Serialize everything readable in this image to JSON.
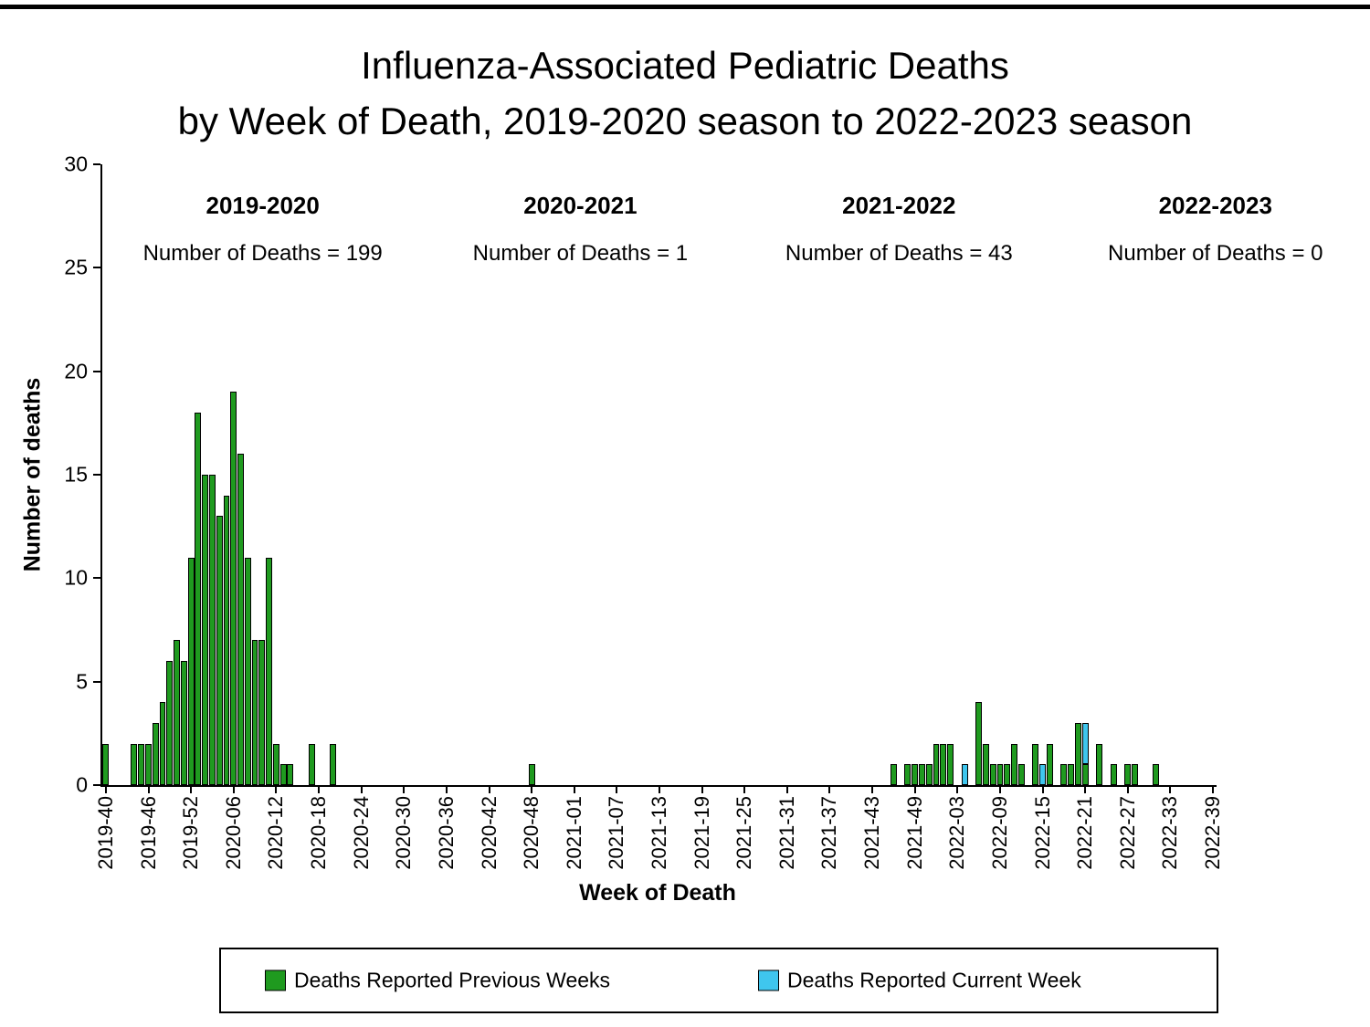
{
  "page": {
    "title_line1": "Influenza-Associated Pediatric Deaths",
    "title_line2": "by Week of Death, 2019-2020 season to 2022-2023 season"
  },
  "y_axis": {
    "label": "Number of deaths",
    "ticks": [
      0,
      5,
      10,
      15,
      20,
      25,
      30
    ],
    "max": 30
  },
  "x_axis": {
    "label": "Week of Death",
    "tick_labels": [
      "2019-40",
      "2019-46",
      "2019-52",
      "2020-06",
      "2020-12",
      "2020-18",
      "2020-24",
      "2020-30",
      "2020-36",
      "2020-42",
      "2020-48",
      "2021-01",
      "2021-07",
      "2021-13",
      "2021-19",
      "2021-25",
      "2021-31",
      "2021-37",
      "2021-43",
      "2021-49",
      "2022-03",
      "2022-09",
      "2022-15",
      "2022-21",
      "2022-27",
      "2022-33",
      "2022-39"
    ]
  },
  "seasons": [
    {
      "name": "2019-2020",
      "count_label": "Number of Deaths = 199"
    },
    {
      "name": "2020-2021",
      "count_label": "Number of Deaths = 1"
    },
    {
      "name": "2021-2022",
      "count_label": "Number of Deaths = 43"
    },
    {
      "name": "2022-2023",
      "count_label": "Number of Deaths = 0"
    }
  ],
  "legend": {
    "previous": {
      "label": "Deaths Reported Previous Weeks",
      "color": "#1f9a1f"
    },
    "current": {
      "label": "Deaths Reported Current Week",
      "color": "#3fc6ee"
    }
  },
  "chart_data": {
    "type": "bar",
    "stacked": true,
    "title": "Influenza-Associated Pediatric Deaths by Week of Death, 2019-2020 season to 2022-2023 season",
    "xlabel": "Week of Death",
    "ylabel": "Number of deaths",
    "ylim": [
      0,
      30
    ],
    "grid": false,
    "legend_position": "bottom",
    "week_spans": [
      {
        "year": "2019",
        "from": 40,
        "to": 52
      },
      {
        "year": "2020",
        "from": 1,
        "to": 53
      },
      {
        "year": "2021",
        "from": 1,
        "to": 52
      },
      {
        "year": "2022",
        "from": 1,
        "to": 39
      }
    ],
    "season_totals": {
      "2019-2020": 199,
      "2020-2021": 1,
      "2021-2022": 43,
      "2022-2023": 0
    },
    "series": [
      {
        "name": "Deaths Reported Previous Weeks",
        "color": "#1f9a1f"
      },
      {
        "name": "Deaths Reported Current Week",
        "color": "#3fc6ee"
      }
    ],
    "bars": [
      {
        "week": "2019-40",
        "previous": 2,
        "current": 0
      },
      {
        "week": "2019-44",
        "previous": 2,
        "current": 0
      },
      {
        "week": "2019-45",
        "previous": 2,
        "current": 0
      },
      {
        "week": "2019-46",
        "previous": 2,
        "current": 0
      },
      {
        "week": "2019-47",
        "previous": 3,
        "current": 0
      },
      {
        "week": "2019-48",
        "previous": 4,
        "current": 0
      },
      {
        "week": "2019-49",
        "previous": 6,
        "current": 0
      },
      {
        "week": "2019-50",
        "previous": 7,
        "current": 0
      },
      {
        "week": "2019-51",
        "previous": 6,
        "current": 0
      },
      {
        "week": "2019-52",
        "previous": 11,
        "current": 0
      },
      {
        "week": "2020-01",
        "previous": 18,
        "current": 0
      },
      {
        "week": "2020-02",
        "previous": 15,
        "current": 0
      },
      {
        "week": "2020-03",
        "previous": 15,
        "current": 0
      },
      {
        "week": "2020-04",
        "previous": 13,
        "current": 0
      },
      {
        "week": "2020-05",
        "previous": 14,
        "current": 0
      },
      {
        "week": "2020-06",
        "previous": 19,
        "current": 0
      },
      {
        "week": "2020-07",
        "previous": 16,
        "current": 0
      },
      {
        "week": "2020-08",
        "previous": 11,
        "current": 0
      },
      {
        "week": "2020-09",
        "previous": 7,
        "current": 0
      },
      {
        "week": "2020-10",
        "previous": 7,
        "current": 0
      },
      {
        "week": "2020-11",
        "previous": 11,
        "current": 0
      },
      {
        "week": "2020-12",
        "previous": 2,
        "current": 0
      },
      {
        "week": "2020-13",
        "previous": 1,
        "current": 0
      },
      {
        "week": "2020-14",
        "previous": 1,
        "current": 0
      },
      {
        "week": "2020-17",
        "previous": 2,
        "current": 0
      },
      {
        "week": "2020-20",
        "previous": 2,
        "current": 0
      },
      {
        "week": "2020-48",
        "previous": 1,
        "current": 0
      },
      {
        "week": "2021-46",
        "previous": 1,
        "current": 0
      },
      {
        "week": "2021-48",
        "previous": 1,
        "current": 0
      },
      {
        "week": "2021-49",
        "previous": 1,
        "current": 0
      },
      {
        "week": "2021-50",
        "previous": 1,
        "current": 0
      },
      {
        "week": "2021-51",
        "previous": 1,
        "current": 0
      },
      {
        "week": "2021-52",
        "previous": 2,
        "current": 0
      },
      {
        "week": "2022-01",
        "previous": 2,
        "current": 0
      },
      {
        "week": "2022-02",
        "previous": 2,
        "current": 0
      },
      {
        "week": "2022-04",
        "previous": 0,
        "current": 1
      },
      {
        "week": "2022-06",
        "previous": 4,
        "current": 0
      },
      {
        "week": "2022-07",
        "previous": 2,
        "current": 0
      },
      {
        "week": "2022-08",
        "previous": 1,
        "current": 0
      },
      {
        "week": "2022-09",
        "previous": 1,
        "current": 0
      },
      {
        "week": "2022-10",
        "previous": 1,
        "current": 0
      },
      {
        "week": "2022-11",
        "previous": 2,
        "current": 0
      },
      {
        "week": "2022-12",
        "previous": 1,
        "current": 0
      },
      {
        "week": "2022-14",
        "previous": 2,
        "current": 0
      },
      {
        "week": "2022-15",
        "previous": 0,
        "current": 1
      },
      {
        "week": "2022-16",
        "previous": 2,
        "current": 0
      },
      {
        "week": "2022-18",
        "previous": 1,
        "current": 0
      },
      {
        "week": "2022-19",
        "previous": 1,
        "current": 0
      },
      {
        "week": "2022-20",
        "previous": 3,
        "current": 0
      },
      {
        "week": "2022-21",
        "previous": 1,
        "current": 2
      },
      {
        "week": "2022-23",
        "previous": 2,
        "current": 0
      },
      {
        "week": "2022-25",
        "previous": 1,
        "current": 0
      },
      {
        "week": "2022-27",
        "previous": 1,
        "current": 0
      },
      {
        "week": "2022-28",
        "previous": 1,
        "current": 0
      },
      {
        "week": "2022-31",
        "previous": 1,
        "current": 0
      }
    ]
  }
}
